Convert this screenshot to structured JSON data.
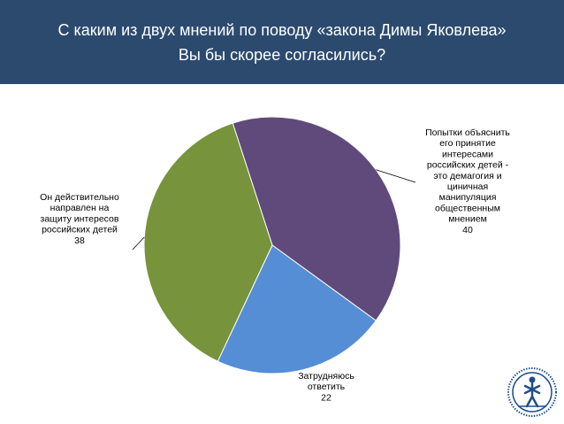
{
  "title": {
    "line1": "С каким из двух мнений по поводу «закона Димы Яковлева»",
    "line2": "Вы бы скорее согласились?"
  },
  "chart_data": {
    "type": "pie",
    "title": "С каким из двух мнений по поводу «закона Димы Яковлева» Вы бы скорее согласились?",
    "start_angle_deg": -18,
    "slices": [
      {
        "label_lines": [
          "Попытки объяснить",
          "его принятие",
          "интересами",
          "российских детей -",
          "это демагогия и",
          "циничная",
          "манипуляция",
          "общественным",
          "мнением"
        ],
        "value": 40,
        "value_label": "40",
        "color": "#604a7b"
      },
      {
        "label_lines": [
          "Затрудняюсь",
          "ответить"
        ],
        "value": 22,
        "value_label": "22",
        "color": "#558ed5"
      },
      {
        "label_lines": [
          "Он действительно",
          "направлен на",
          "защиту интересов",
          "российских детей"
        ],
        "value": 38,
        "value_label": "38",
        "color": "#77933c"
      }
    ]
  },
  "colors": {
    "title_background": "#2c4a6e",
    "title_text": "#ffffff",
    "slice_edge": "#ffffff",
    "leader_line": "#000000",
    "logo": "#1f4e8c"
  },
  "icons": {
    "logo": "university-emblem-icon"
  }
}
